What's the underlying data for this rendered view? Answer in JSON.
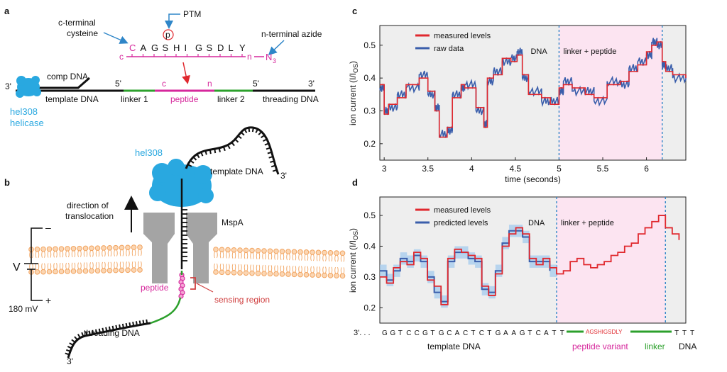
{
  "figure": {
    "panels": {
      "a": "a",
      "b": "b",
      "c": "c",
      "d": "d"
    },
    "panel_a": {
      "ptm_label": "PTM",
      "ptm_circle": "p",
      "c_terminal": "c-terminal\ncysteine",
      "n_terminal": "n-terminal azide",
      "sequence": [
        "C",
        "A",
        "G",
        "S",
        "H",
        "I",
        "G",
        "S",
        "D",
        "L",
        "Y"
      ],
      "seq_c": "c",
      "seq_n": "n",
      "azide": "N",
      "azide_sub": "3",
      "comp_dna": "comp DNA",
      "three_prime_left": "3'",
      "five_prime_1": "5'",
      "five_prime_2": "5'",
      "three_prime_right": "3'",
      "template_dna": "template DNA",
      "linker1": "linker 1",
      "peptide": "peptide",
      "linker2": "linker 2",
      "threading_dna": "threading DNA",
      "c_mark": "c",
      "n_mark": "n",
      "helicase_line1": "hel308",
      "helicase_line2": "helicase"
    },
    "panel_b": {
      "hel308": "hel308",
      "template_dna": "template DNA",
      "three_prime_top": "3'",
      "direction": "direction of\ntranslocation",
      "mspa": "MspA",
      "v": "V",
      "minus": "–",
      "plus": "+",
      "voltage": "180 mV",
      "peptide": "peptide",
      "sensing_region": "sensing region",
      "threading_dna": "threading DNA",
      "three_prime_bottom": "3'"
    },
    "colors": {
      "helicase": "#29a8e0",
      "peptide": "#d6289c",
      "linker": "#2ca02c",
      "measured": "#e0282e",
      "raw": "#3a5eab",
      "pink_bg": "#fce4f1",
      "grey_bg": "#eeeeee",
      "sensing": "#d04040",
      "membrane": "#f2a35e"
    }
  },
  "chart_data": [
    {
      "panel": "c",
      "type": "line",
      "xlabel": "time (seconds)",
      "ylabel": "ion current (I/I",
      "ylabel_sub": "OS",
      "xlim": [
        2.95,
        6.45
      ],
      "ylim": [
        0.15,
        0.56
      ],
      "xticks": [
        3,
        3.5,
        4,
        4.5,
        5,
        5.5,
        6
      ],
      "yticks": [
        0.2,
        0.3,
        0.4,
        0.5
      ],
      "regions": [
        {
          "label": "DNA",
          "x0": 2.95,
          "x1": 5.0
        },
        {
          "label": "linker + peptide",
          "x0": 5.0,
          "x1": 6.18
        }
      ],
      "vlines": [
        5.0,
        6.18
      ],
      "series": [
        {
          "name": "measured levels",
          "x": [
            2.95,
            3.0,
            3.05,
            3.15,
            3.25,
            3.4,
            3.5,
            3.58,
            3.63,
            3.72,
            3.78,
            3.88,
            3.92,
            4.05,
            4.14,
            4.18,
            4.25,
            4.35,
            4.45,
            4.52,
            4.58,
            4.65,
            4.8,
            4.9,
            5.0,
            5.05,
            5.15,
            5.3,
            5.4,
            5.55,
            5.7,
            5.8,
            5.9,
            6.0,
            6.06,
            6.12,
            6.18,
            6.22,
            6.3,
            6.45
          ],
          "values": [
            0.38,
            0.29,
            0.32,
            0.34,
            0.38,
            0.4,
            0.36,
            0.3,
            0.22,
            0.25,
            0.34,
            0.38,
            0.37,
            0.31,
            0.25,
            0.4,
            0.41,
            0.46,
            0.45,
            0.47,
            0.41,
            0.35,
            0.34,
            0.32,
            0.37,
            0.38,
            0.37,
            0.35,
            0.34,
            0.38,
            0.39,
            0.42,
            0.44,
            0.48,
            0.5,
            0.51,
            0.45,
            0.42,
            0.41,
            0.4
          ]
        },
        {
          "name": "raw data",
          "x": [
            2.95,
            3.0,
            3.05,
            3.15,
            3.25,
            3.4,
            3.5,
            3.58,
            3.63,
            3.72,
            3.78,
            3.88,
            3.92,
            4.05,
            4.14,
            4.18,
            4.25,
            4.35,
            4.45,
            4.52,
            4.58,
            4.65,
            4.8,
            4.9,
            5.0,
            5.05,
            5.15,
            5.3,
            5.4,
            5.55,
            5.7,
            5.8,
            5.9,
            6.0,
            6.06,
            6.12,
            6.18,
            6.22,
            6.3,
            6.45
          ],
          "values": [
            0.37,
            0.3,
            0.31,
            0.35,
            0.37,
            0.41,
            0.35,
            0.31,
            0.23,
            0.24,
            0.35,
            0.37,
            0.38,
            0.3,
            0.26,
            0.39,
            0.42,
            0.45,
            0.46,
            0.48,
            0.4,
            0.36,
            0.33,
            0.33,
            0.36,
            0.39,
            0.36,
            0.36,
            0.33,
            0.39,
            0.38,
            0.43,
            0.45,
            0.47,
            0.51,
            0.5,
            0.44,
            0.43,
            0.4,
            0.41
          ]
        }
      ]
    },
    {
      "panel": "d",
      "type": "line",
      "xlabel": "",
      "ylabel": "ion current (I/I",
      "ylabel_sub": "OS",
      "xlim": [
        0,
        45
      ],
      "ylim": [
        0.15,
        0.56
      ],
      "yticks": [
        0.2,
        0.3,
        0.4,
        0.5
      ],
      "regions": [
        {
          "label": "DNA",
          "x0": 0,
          "x1": 26
        },
        {
          "label": "linker + peptide",
          "x0": 26,
          "x1": 42
        }
      ],
      "vlines": [
        26,
        42
      ],
      "series": [
        {
          "name": "measured levels",
          "values": [
            0.3,
            0.28,
            0.33,
            0.35,
            0.34,
            0.38,
            0.36,
            0.29,
            0.27,
            0.21,
            0.36,
            0.39,
            0.38,
            0.37,
            0.36,
            0.27,
            0.24,
            0.31,
            0.4,
            0.44,
            0.46,
            0.44,
            0.36,
            0.34,
            0.36,
            0.33,
            0.31,
            0.32,
            0.35,
            0.36,
            0.34,
            0.33,
            0.34,
            0.35,
            0.37,
            0.38,
            0.4,
            0.41,
            0.44,
            0.46,
            0.48,
            0.5,
            0.46,
            0.44,
            0.42
          ]
        },
        {
          "name": "predicted levels",
          "values": [
            0.32,
            0.29,
            0.32,
            0.36,
            0.35,
            0.37,
            0.35,
            0.3,
            0.25,
            0.22,
            0.35,
            0.38,
            0.38,
            0.36,
            0.35,
            0.26,
            0.25,
            0.32,
            0.41,
            0.45,
            0.45,
            0.43,
            0.35,
            0.35,
            0.35,
            0.32
          ]
        }
      ],
      "sequence": {
        "prefix": "3'. . .",
        "bases": [
          "G",
          "G",
          "T",
          "C",
          "C",
          "G",
          "T",
          "G",
          "C",
          "A",
          "C",
          "T",
          "C",
          "T",
          "G",
          "A",
          "A",
          "G",
          "T",
          "C",
          "A",
          "T",
          "T"
        ],
        "peptide_variant_seq": "AGSHIGSDLY",
        "tail": [
          "T",
          "T",
          "T"
        ],
        "template_dna": "template DNA",
        "peptide_variant": "peptide variant",
        "linker": "linker",
        "dna": "DNA"
      }
    }
  ]
}
